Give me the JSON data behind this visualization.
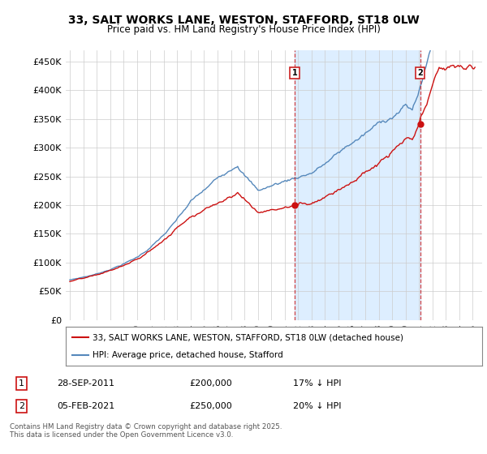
{
  "title_line1": "33, SALT WORKS LANE, WESTON, STAFFORD, ST18 0LW",
  "title_line2": "Price paid vs. HM Land Registry's House Price Index (HPI)",
  "ylim": [
    0,
    470000
  ],
  "yticks": [
    0,
    50000,
    100000,
    150000,
    200000,
    250000,
    300000,
    350000,
    400000,
    450000
  ],
  "ytick_labels": [
    "£0",
    "£50K",
    "£100K",
    "£150K",
    "£200K",
    "£250K",
    "£300K",
    "£350K",
    "£400K",
    "£450K"
  ],
  "hpi_color": "#5588bb",
  "price_color": "#cc1111",
  "vline_color": "#cc2222",
  "shade_color": "#ddeeff",
  "marker1_x": 2011.75,
  "marker2_x": 2021.08,
  "marker1_price": 200000,
  "marker2_price": 250000,
  "legend_line1": "33, SALT WORKS LANE, WESTON, STAFFORD, ST18 0LW (detached house)",
  "legend_line2": "HPI: Average price, detached house, Stafford",
  "table_row1": [
    "1",
    "28-SEP-2011",
    "£200,000",
    "17% ↓ HPI"
  ],
  "table_row2": [
    "2",
    "05-FEB-2021",
    "£250,000",
    "20% ↓ HPI"
  ],
  "footer": "Contains HM Land Registry data © Crown copyright and database right 2025.\nThis data is licensed under the Open Government Licence v3.0.",
  "bg_color": "#ffffff",
  "grid_color": "#cccccc"
}
